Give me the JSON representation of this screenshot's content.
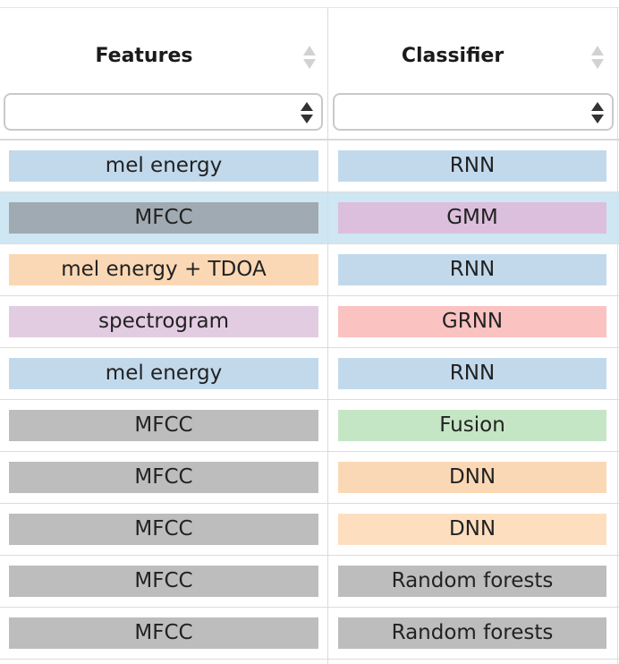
{
  "table": {
    "columns": [
      {
        "label": "Features"
      },
      {
        "label": "Classifier"
      }
    ],
    "filters": [
      {
        "value": ""
      },
      {
        "value": ""
      }
    ],
    "rows": [
      {
        "features": "mel energy",
        "features_color": "#c2d9ec",
        "classifier": "RNN",
        "classifier_color": "#c2d9ec",
        "selected": false
      },
      {
        "features": "MFCC",
        "features_color": "#a0aab2",
        "classifier": "GMM",
        "classifier_color": "#dcbfdc",
        "selected": true
      },
      {
        "features": "mel energy + TDOA",
        "features_color": "#fbd8b5",
        "classifier": "RNN",
        "classifier_color": "#c2d9ec",
        "selected": false
      },
      {
        "features": "spectrogram",
        "features_color": "#e2cce2",
        "classifier": "GRNN",
        "classifier_color": "#fbc2c2",
        "selected": false
      },
      {
        "features": "mel energy",
        "features_color": "#c2d9ec",
        "classifier": "RNN",
        "classifier_color": "#c2d9ec",
        "selected": false
      },
      {
        "features": "MFCC",
        "features_color": "#bdbdbd",
        "classifier": "Fusion",
        "classifier_color": "#c5e6c5",
        "selected": false
      },
      {
        "features": "MFCC",
        "features_color": "#bdbdbd",
        "classifier": "DNN",
        "classifier_color": "#fbd8b5",
        "selected": false
      },
      {
        "features": "MFCC",
        "features_color": "#bdbdbd",
        "classifier": "DNN",
        "classifier_color": "#fddfc0",
        "selected": false
      },
      {
        "features": "MFCC",
        "features_color": "#bdbdbd",
        "classifier": "Random forests",
        "classifier_color": "#bdbdbd",
        "selected": false
      },
      {
        "features": "MFCC",
        "features_color": "#bdbdbd",
        "classifier": "Random forests",
        "classifier_color": "#bdbdbd",
        "selected": false
      }
    ]
  }
}
